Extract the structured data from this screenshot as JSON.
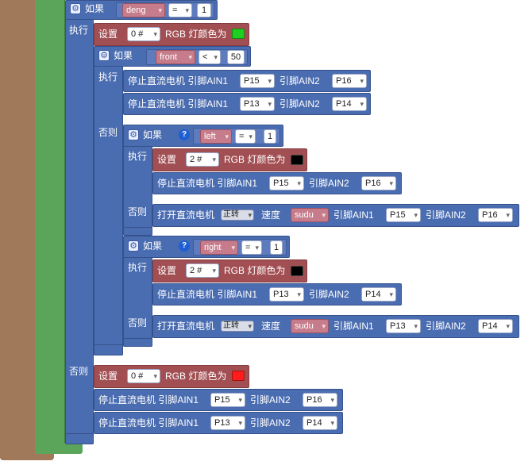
{
  "colors": {
    "brown": "#a0785a",
    "green": "#5ba55b",
    "blue": "#4a6cb0",
    "red_block": "#a24f53",
    "swatch_green": "#1fcf1f",
    "swatch_black": "#000000",
    "swatch_red": "#ff1c1c"
  },
  "top_if": {
    "label": "如果",
    "var": "deng",
    "op": "=",
    "value": "1",
    "then": "执行",
    "else": "否则"
  },
  "set_green": {
    "prefix": "设置",
    "pin": "0 #",
    "text": "RGB 灯颜色为",
    "color": "green"
  },
  "if_front": {
    "label": "如果",
    "var": "front",
    "op": "<",
    "value": "50",
    "then": "执行",
    "else": "否则"
  },
  "stop_a": {
    "text": "停止直流电机 引脚AIN1",
    "pin1": "P15",
    "mid": "引脚AIN2",
    "pin2": "P16"
  },
  "stop_b": {
    "text": "停止直流电机 引脚AIN1",
    "pin1": "P13",
    "mid": "引脚AIN2",
    "pin2": "P14"
  },
  "if_left": {
    "label": "如果",
    "var": "left",
    "op": "=",
    "value": "1",
    "then": "执行",
    "else": "否则"
  },
  "set_black_1": {
    "prefix": "设置",
    "pin": "2 #",
    "text": "RGB 灯颜色为"
  },
  "stop_c": {
    "text": "停止直流电机 引脚AIN1",
    "pin1": "P15",
    "mid": "引脚AIN2",
    "pin2": "P16"
  },
  "run_a": {
    "text": "打开直流电机",
    "dir": "正转",
    "speed_label": "速度",
    "speed": "sudu",
    "ain1": "引脚AIN1",
    "pin1": "P15",
    "ain2": "引脚AIN2",
    "pin2": "P16"
  },
  "if_right": {
    "label": "如果",
    "var": "right",
    "op": "=",
    "value": "1",
    "then": "执行",
    "else": "否则"
  },
  "set_black_2": {
    "prefix": "设置",
    "pin": "2 #",
    "text": "RGB 灯颜色为"
  },
  "stop_d": {
    "text": "停止直流电机 引脚AIN1",
    "pin1": "P13",
    "mid": "引脚AIN2",
    "pin2": "P14"
  },
  "run_b": {
    "text": "打开直流电机",
    "dir": "正转",
    "speed_label": "速度",
    "speed": "sudu",
    "ain1": "引脚AIN1",
    "pin1": "P13",
    "ain2": "引脚AIN2",
    "pin2": "P14"
  },
  "set_red": {
    "prefix": "设置",
    "pin": "0 #",
    "text": "RGB 灯颜色为"
  },
  "stop_e": {
    "text": "停止直流电机 引脚AIN1",
    "pin1": "P15",
    "mid": "引脚AIN2",
    "pin2": "P16"
  },
  "stop_f": {
    "text": "停止直流电机 引脚AIN1",
    "pin1": "P13",
    "mid": "引脚AIN2",
    "pin2": "P14"
  }
}
